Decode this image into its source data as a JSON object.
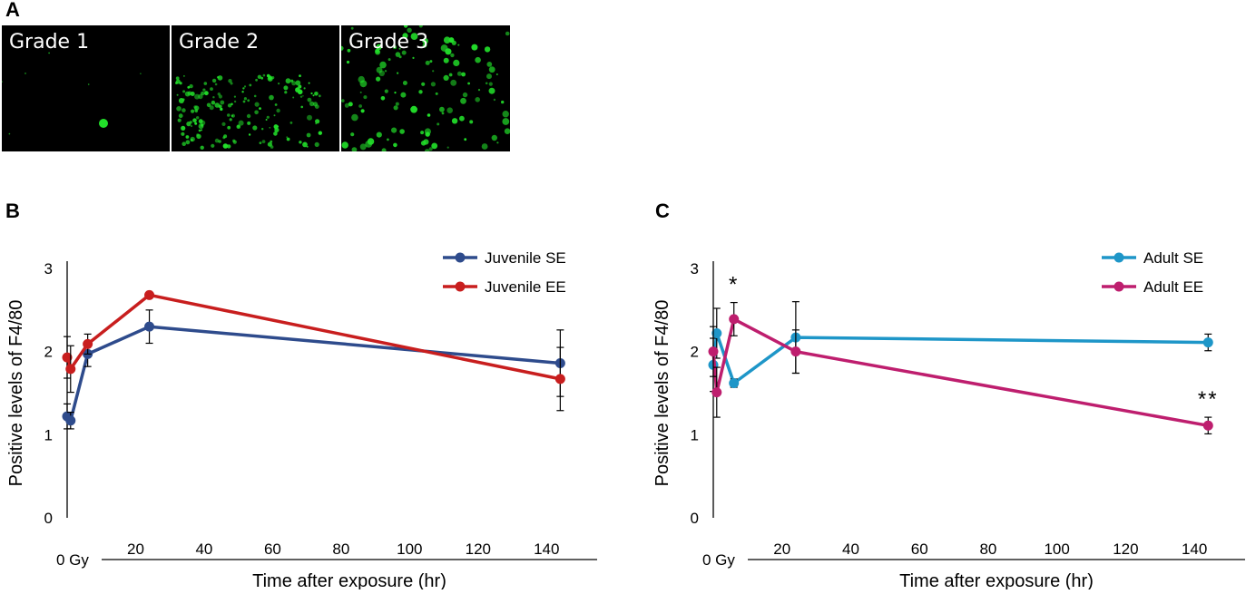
{
  "panel_a": {
    "letter": "A",
    "images": [
      {
        "label": "Grade 1"
      },
      {
        "label": "Grade 2"
      },
      {
        "label": "Grade 3"
      }
    ],
    "spot_color": "#22e02a"
  },
  "chart_data": [
    {
      "panel": "B",
      "type": "line",
      "title": "",
      "xlabel": "Time after exposure (hr)",
      "ylabel": "Positive levels of F4/80",
      "x_baseline_label": "0 Gy",
      "xlim": [
        0,
        150
      ],
      "ylim": [
        0,
        3
      ],
      "xticks": [
        20,
        40,
        60,
        80,
        100,
        120,
        140
      ],
      "yticks": [
        0,
        1,
        2,
        3
      ],
      "legend_position": "top-right",
      "grid": false,
      "series": [
        {
          "name": "Juvenile SE",
          "color": "#2e4b8c",
          "x": [
            0,
            1,
            6,
            24,
            144
          ],
          "y": [
            1.22,
            1.17,
            1.97,
            2.3,
            1.86
          ],
          "err": [
            0.15,
            0.1,
            0.15,
            0.2,
            0.4
          ],
          "annotations": [
            "",
            "",
            "",
            "",
            ""
          ]
        },
        {
          "name": "Juvenile EE",
          "color": "#c81e1e",
          "x": [
            0,
            1,
            6,
            24,
            144
          ],
          "y": [
            1.93,
            1.79,
            2.09,
            2.68,
            1.67
          ],
          "err": [
            0.25,
            0.28,
            0.12,
            0.0,
            0.38
          ],
          "annotations": [
            "",
            "",
            "",
            "",
            ""
          ]
        }
      ]
    },
    {
      "panel": "C",
      "type": "line",
      "title": "",
      "xlabel": "Time after exposure (hr)",
      "ylabel": "Positive levels of F4/80",
      "x_baseline_label": "0 Gy",
      "xlim": [
        0,
        150
      ],
      "ylim": [
        0,
        3
      ],
      "xticks": [
        20,
        40,
        60,
        80,
        100,
        120,
        140
      ],
      "yticks": [
        0,
        1,
        2,
        3
      ],
      "legend_position": "top-right",
      "grid": false,
      "series": [
        {
          "name": "Adult SE",
          "color": "#1e96c8",
          "x": [
            0,
            1,
            6,
            24,
            144
          ],
          "y": [
            1.84,
            2.22,
            1.62,
            2.17,
            2.11
          ],
          "err": [
            0.32,
            0.3,
            0.05,
            0.43,
            0.1
          ],
          "annotations": [
            "",
            "",
            "",
            "",
            ""
          ]
        },
        {
          "name": "Adult EE",
          "color": "#be1e6e",
          "x": [
            0,
            1,
            6,
            24,
            144
          ],
          "y": [
            2.0,
            1.51,
            2.39,
            2.0,
            1.11
          ],
          "err": [
            0.3,
            0.3,
            0.2,
            0.26,
            0.1
          ],
          "annotations": [
            "",
            "",
            "*",
            "",
            "**"
          ]
        }
      ]
    }
  ]
}
